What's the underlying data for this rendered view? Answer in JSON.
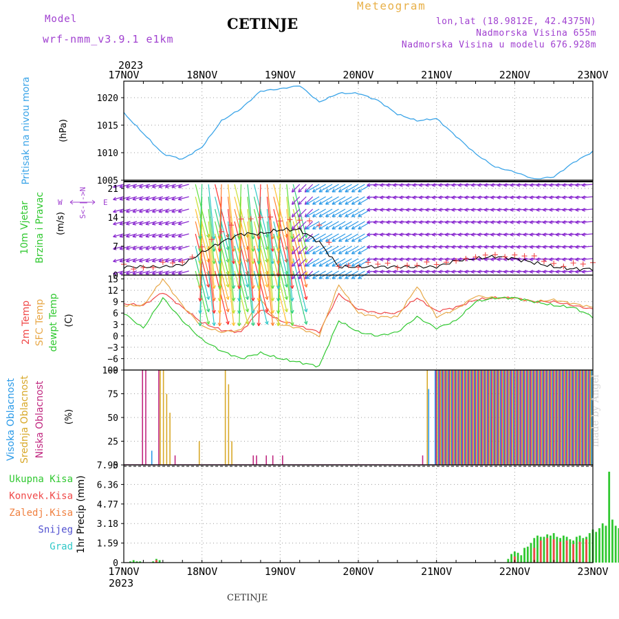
{
  "header": {
    "model_label": "Model",
    "model_name": "wrf-nmm_v3.9.1 e1km",
    "station": "CETINJE",
    "meteogram": "Meteogram",
    "lonlat": "lon,lat (18.9812E, 42.4375N)",
    "altitude": "Nadmorska Visina 655m",
    "model_altitude": "Nadmorska Visina u modelu 676.928m"
  },
  "footer": {
    "station": "CETINJE",
    "made_by": "made by Angel"
  },
  "axis": {
    "year": "2023",
    "dates": [
      "17NOV",
      "18NOV",
      "19NOV",
      "20NOV",
      "21NOV",
      "22NOV",
      "23NOV"
    ]
  },
  "colors": {
    "pressure": "#3aa4e8",
    "temp2m": "#f04848",
    "sfc": "#e8a848",
    "dewpt": "#30c830",
    "high_cloud": "#2a9ae8",
    "mid_cloud": "#d8a828",
    "low_cloud": "#c02880",
    "total_precip": "#30c830",
    "conv_precip": "#f04848",
    "frz_precip": "#f08040",
    "snow": "#5050d0",
    "grad": "#30c8c8",
    "wind_label": "#30c830",
    "purple": "#a040d0"
  },
  "panels": {
    "pressure": {
      "labels": [
        "Pritisak na nivou mora"
      ],
      "unit": "(hPa)"
    },
    "wind": {
      "labels": [
        "10m Vjetar",
        "Brzina i Pravac"
      ],
      "unit": "(m/s)",
      "compass": [
        "N",
        "W",
        "E",
        "S"
      ]
    },
    "temp": {
      "labels": [
        "2m Temp",
        "SFC Temp",
        "dewpt Temp"
      ],
      "unit": "(C)"
    },
    "cloud": {
      "labels": [
        "Visoka Oblacnost",
        "Srednja Oblacnost",
        "Niska Oblacnost"
      ],
      "unit": "(%)"
    },
    "precip": {
      "labels": [
        "Ukupna Kisa",
        "Konvek.Kisa",
        "Zaledj.Kisa",
        "Snijeg",
        "Grad"
      ],
      "unit": "1hr Precip (mm)"
    }
  },
  "chart_data": [
    {
      "type": "line",
      "name": "pressure",
      "ylim": [
        1005,
        1023
      ],
      "yticks": [
        1005,
        1010,
        1015,
        1020
      ],
      "x": [
        "2023-11-17T00",
        "2023-11-17T06",
        "2023-11-17T12",
        "2023-11-17T18",
        "2023-11-18T00",
        "2023-11-18T06",
        "2023-11-18T12",
        "2023-11-18T18",
        "2023-11-19T00",
        "2023-11-19T06",
        "2023-11-19T12",
        "2023-11-19T18",
        "2023-11-20T00",
        "2023-11-20T06",
        "2023-11-20T12",
        "2023-11-20T18",
        "2023-11-21T00",
        "2023-11-21T06",
        "2023-11-21T12",
        "2023-11-21T18",
        "2023-11-22T00",
        "2023-11-22T06",
        "2023-11-22T12",
        "2023-11-22T18",
        "2023-11-23T00"
      ],
      "series": [
        {
          "values": [
            1017.2,
            1013.5,
            1009.8,
            1008.8,
            1011.0,
            1015.8,
            1018.0,
            1021.2,
            1021.6,
            1022.2,
            1019.2,
            1020.8,
            1020.8,
            1019.5,
            1017.0,
            1015.8,
            1016.2,
            1013.0,
            1009.8,
            1007.4,
            1006.5,
            1005.2,
            1005.6,
            1008.2,
            1010.2
          ]
        }
      ]
    },
    {
      "type": "barb",
      "name": "wind",
      "ylim": [
        0,
        23
      ],
      "yticks": [
        0,
        7,
        14,
        21
      ],
      "x": [
        "2023-11-17T00",
        "2023-11-17T06",
        "2023-11-17T12",
        "2023-11-17T18",
        "2023-11-18T00",
        "2023-11-18T06",
        "2023-11-18T12",
        "2023-11-18T18",
        "2023-11-19T00",
        "2023-11-19T06",
        "2023-11-19T12",
        "2023-11-19T18",
        "2023-11-20T00",
        "2023-11-20T06",
        "2023-11-20T12",
        "2023-11-20T18",
        "2023-11-21T00",
        "2023-11-21T06",
        "2023-11-21T12",
        "2023-11-21T18",
        "2023-11-22T00",
        "2023-11-22T06",
        "2023-11-22T12",
        "2023-11-22T18",
        "2023-11-23T00"
      ],
      "speed": [
        2,
        2,
        2,
        2.5,
        5.5,
        8,
        10,
        10,
        11,
        11,
        8,
        2,
        2,
        2,
        2,
        2,
        2,
        3.5,
        4,
        4.5,
        4,
        3,
        2,
        1.5,
        1.5
      ],
      "gust": [
        2,
        2,
        2.5,
        3,
        7,
        10,
        14,
        14,
        13,
        14,
        12,
        2.5,
        2.5,
        2.5,
        2.5,
        2.5,
        2.5,
        4,
        4,
        5,
        5,
        4,
        3,
        2.5,
        2.5
      ],
      "dir_groups": [
        {
          "from": "2023-11-17T00",
          "to": "2023-11-17T22",
          "color": "purple",
          "angle": 15
        },
        {
          "from": "2023-11-17T22",
          "to": "2023-11-19T06",
          "color": "rainbow",
          "angle": -80
        },
        {
          "from": "2023-11-19T06",
          "to": "2023-11-19T12",
          "color": "purple",
          "angle": 45
        },
        {
          "from": "2023-11-19T12",
          "to": "2023-11-20T06",
          "color": "blue",
          "angle": 30
        },
        {
          "from": "2023-11-20T06",
          "to": "2023-11-23T00",
          "color": "purple",
          "angle": 5
        }
      ]
    },
    {
      "type": "line",
      "name": "temperature",
      "ylim": [
        -9,
        16
      ],
      "yticks": [
        -9,
        -6,
        -3,
        0,
        3,
        6,
        9,
        12,
        15
      ],
      "x": [
        "2023-11-17T00",
        "2023-11-17T06",
        "2023-11-17T12",
        "2023-11-17T18",
        "2023-11-18T00",
        "2023-11-18T06",
        "2023-11-18T12",
        "2023-11-18T18",
        "2023-11-19T00",
        "2023-11-19T06",
        "2023-11-19T12",
        "2023-11-19T18",
        "2023-11-20T00",
        "2023-11-20T06",
        "2023-11-20T12",
        "2023-11-20T18",
        "2023-11-21T00",
        "2023-11-21T06",
        "2023-11-21T12",
        "2023-11-21T18",
        "2023-11-22T00",
        "2023-11-22T06",
        "2023-11-22T12",
        "2023-11-22T18",
        "2023-11-23T00"
      ],
      "series": [
        {
          "name": "2m Temp",
          "color": "temp2m",
          "values": [
            8.5,
            8,
            11.5,
            7.5,
            3.5,
            1.5,
            1,
            7,
            4,
            2.5,
            1,
            11,
            7,
            6,
            6,
            10,
            6.5,
            7.5,
            9.5,
            10,
            10,
            9,
            9,
            8,
            7
          ]
        },
        {
          "name": "SFC Temp",
          "color": "sfc",
          "values": [
            8,
            8,
            15,
            8,
            2.5,
            1,
            1.5,
            9.5,
            3,
            2,
            0,
            13.5,
            6,
            5,
            5,
            13,
            5,
            7,
            10.5,
            10,
            10,
            9,
            9.5,
            8.5,
            7.5
          ]
        },
        {
          "name": "dewpt Temp",
          "color": "dewpt",
          "values": [
            6,
            2,
            10,
            4,
            -1,
            -4,
            -6,
            -4.5,
            -6,
            -7,
            -8,
            4,
            1,
            0,
            1,
            5,
            2,
            4,
            9,
            10,
            10,
            9,
            8,
            7.5,
            5
          ]
        }
      ]
    },
    {
      "type": "bar",
      "name": "cloud",
      "ylim": [
        0,
        100
      ],
      "yticks": [
        0,
        25,
        50,
        75,
        100
      ],
      "series": [
        {
          "name": "Visoka Oblacnost",
          "color": "high_cloud",
          "values_ref": "sparse_high"
        },
        {
          "name": "Srednja Oblacnost",
          "color": "mid_cloud",
          "values_ref": "sparse_mid"
        },
        {
          "name": "Niska Oblacnost",
          "color": "low_cloud",
          "values_ref": "sparse_low"
        }
      ],
      "sparse_high": [
        [
          "2023-11-17T08",
          15
        ],
        [
          "2023-11-20T21",
          80
        ],
        [
          "2023-11-20T23",
          100
        ]
      ],
      "sparse_mid": [
        [
          "2023-11-17T11",
          100
        ],
        [
          "2023-11-17T12",
          100
        ],
        [
          "2023-11-17T13",
          75
        ],
        [
          "2023-11-17T14",
          55
        ],
        [
          "2023-11-17T23",
          25
        ],
        [
          "2023-11-18T07",
          100
        ],
        [
          "2023-11-18T08",
          85
        ],
        [
          "2023-11-18T09",
          25
        ],
        [
          "2023-11-20T21",
          100
        ]
      ],
      "sparse_low": [
        [
          "2023-11-17T06",
          100
        ],
        [
          "2023-11-17T07",
          100
        ],
        [
          "2023-11-17T11",
          100
        ],
        [
          "2023-11-17T16",
          10
        ],
        [
          "2023-11-18T16",
          10
        ],
        [
          "2023-11-18T17",
          10
        ],
        [
          "2023-11-18T20",
          10
        ],
        [
          "2023-11-18T22",
          10
        ],
        [
          "2023-11-19T01",
          10
        ],
        [
          "2023-11-20T20",
          10
        ]
      ],
      "full_from": "2023-11-21T00"
    },
    {
      "type": "bar",
      "name": "precipitation",
      "ylim": [
        0,
        7.95
      ],
      "yticks": [
        0,
        1.59,
        3.18,
        4.77,
        6.36,
        7.95
      ],
      "x_hours": [
        2,
        3,
        4,
        5,
        9,
        10,
        11,
        118,
        119,
        120,
        121,
        122,
        123,
        124,
        125,
        126,
        127,
        128,
        129,
        130,
        131,
        132,
        133,
        134,
        135,
        136,
        137,
        138,
        139,
        140,
        141,
        142,
        143,
        144,
        145,
        146,
        147,
        148,
        149,
        150,
        151,
        152,
        153,
        154,
        155,
        156,
        157,
        158,
        159,
        160,
        161,
        162,
        163,
        164,
        165,
        166,
        167,
        168,
        169,
        170,
        171,
        172,
        173,
        174,
        175,
        176
      ],
      "series": [
        {
          "name": "Ukupna Kisa",
          "color": "total_precip",
          "values": [
            0.1,
            0.2,
            0.1,
            0.1,
            0.1,
            0.3,
            0.2,
            0.3,
            0.7,
            0.9,
            0.8,
            0.6,
            1.2,
            1.3,
            1.6,
            2.0,
            2.2,
            2.1,
            2.1,
            2.3,
            2.2,
            2.4,
            2.1,
            2.0,
            2.2,
            2.1,
            1.9,
            1.8,
            2.1,
            2.2,
            2.0,
            2.1,
            2.4,
            2.7,
            2.5,
            2.8,
            3.2,
            3.0,
            7.4,
            3.5,
            3.0,
            2.8,
            2.6,
            1.8,
            1.5,
            0.8,
            0.3,
            0.1,
            0.1,
            0.1,
            0.1,
            0.1,
            0.1,
            0.1,
            0.2,
            0.2,
            0.3,
            0.2,
            0.1,
            0.1,
            0.1,
            0.1,
            0.1,
            0.1,
            0.1,
            0.1
          ]
        },
        {
          "name": "Konvek.Kisa",
          "color": "conv_precip",
          "values": [
            0,
            0,
            0,
            0,
            0,
            0.2,
            0,
            0,
            0,
            0.5,
            0,
            0,
            0,
            0,
            0,
            1.2,
            0,
            1.8,
            0,
            2.0,
            0,
            1.9,
            0,
            1.7,
            0,
            1.8,
            0,
            1.5,
            0,
            1.7,
            0,
            1.9,
            0,
            0,
            0,
            0,
            0,
            0,
            0,
            0,
            0,
            0,
            0,
            0,
            0,
            0,
            0,
            0,
            0,
            0,
            0,
            0,
            0,
            0,
            0,
            0,
            0,
            0,
            0,
            0,
            0,
            0,
            0,
            0,
            0,
            0
          ]
        }
      ]
    }
  ]
}
